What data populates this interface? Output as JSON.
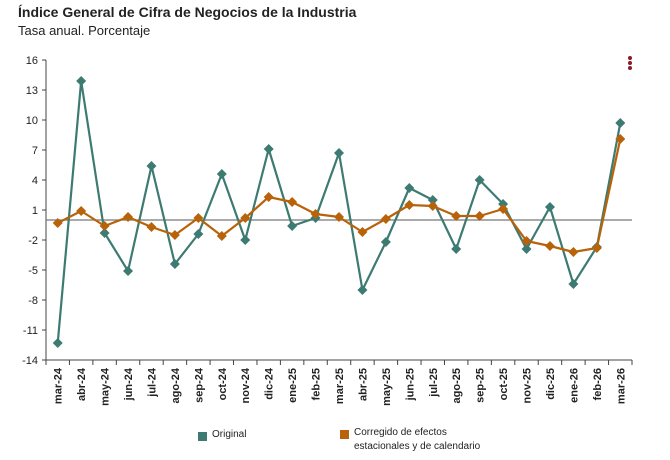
{
  "header": {
    "title": "Índice General de Cifra de Negocios de la Industria",
    "subtitle": "Tasa anual. Porcentaje"
  },
  "menu_icon": "kebab-menu-icon",
  "chart_data": {
    "type": "line",
    "categories": [
      "mar-24",
      "abr-24",
      "may-24",
      "jun-24",
      "jul-24",
      "ago-24",
      "sep-24",
      "oct-24",
      "nov-24",
      "dic-24",
      "ene-25",
      "feb-25",
      "mar-25",
      "abr-25",
      "may-25",
      "jun-25",
      "jul-25",
      "ago-25",
      "sep-25",
      "oct-25",
      "nov-25",
      "dic-25",
      "ene-26",
      "feb-26",
      "mar-26"
    ],
    "category_labels": [
      "mar-24",
      "abr-24",
      "may-24",
      "jun-24",
      "jul-24",
      "ago-24",
      "sep-24",
      "oct-24",
      "nov-24",
      "dic-24",
      "ene-25",
      "feb-25",
      "mar-25",
      "abr-25",
      "may-25",
      "jun-25",
      "jul-25",
      "ago-25",
      "sep-25",
      "oct-25",
      "nov-25",
      "dic-25",
      "ene-26",
      "feb-26",
      "mar-26"
    ],
    "yticks": [
      16,
      13,
      10,
      7,
      4,
      1,
      -2,
      -5,
      -8,
      -11,
      -14
    ],
    "ylim": [
      -14,
      16
    ],
    "baseline": 0,
    "series": [
      {
        "name": "Original",
        "color": "#3d7b72",
        "marker": "diamond",
        "values": [
          -12.3,
          13.9,
          -1.3,
          -5.1,
          5.4,
          -4.4,
          -1.4,
          4.6,
          -2.0,
          7.1,
          -0.6,
          0.2,
          6.7,
          -7.0,
          -2.2,
          3.2,
          2.0,
          -2.9,
          4.0,
          1.6,
          -2.9,
          1.3,
          -6.4,
          -2.7,
          9.7
        ]
      },
      {
        "name": "Corregido de efectos estacionales y de calendario",
        "color": "#b8620a",
        "marker": "diamond",
        "values": [
          -0.3,
          0.9,
          -0.6,
          0.3,
          -0.7,
          -1.5,
          0.2,
          -1.6,
          0.2,
          2.3,
          1.8,
          0.6,
          0.3,
          -1.2,
          0.1,
          1.5,
          1.4,
          0.4,
          0.4,
          1.1,
          -2.1,
          -2.6,
          -3.2,
          -2.8,
          8.1
        ]
      }
    ],
    "legend": {
      "position": "bottom",
      "items": [
        "Original",
        "Corregido de efectos estacionales y de calendario"
      ]
    },
    "grid": false
  }
}
